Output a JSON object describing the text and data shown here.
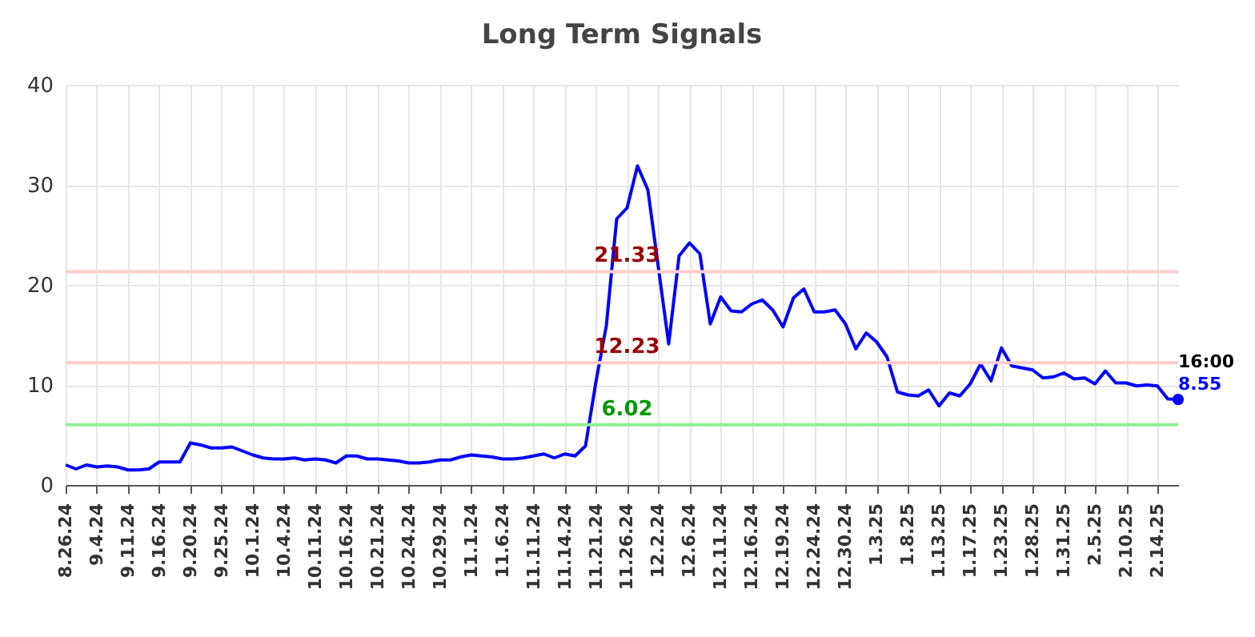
{
  "chart_data": {
    "type": "line",
    "title": "Long Term Signals",
    "categories": [
      "8.26.24",
      null,
      null,
      "9.4.24",
      null,
      null,
      "9.11.24",
      null,
      null,
      "9.16.24",
      null,
      null,
      "9.20.24",
      null,
      null,
      "9.25.24",
      null,
      null,
      "10.1.24",
      null,
      null,
      "10.4.24",
      null,
      null,
      "10.11.24",
      null,
      null,
      "10.16.24",
      null,
      null,
      "10.21.24",
      null,
      null,
      "10.24.24",
      null,
      null,
      "10.29.24",
      null,
      null,
      "11.1.24",
      null,
      null,
      "11.6.24",
      null,
      null,
      "11.11.24",
      null,
      null,
      "11.14.24",
      null,
      null,
      "11.21.24",
      null,
      null,
      "11.26.24",
      null,
      null,
      "12.2.24",
      null,
      null,
      "12.6.24",
      null,
      null,
      "12.11.24",
      null,
      null,
      "12.16.24",
      null,
      null,
      "12.19.24",
      null,
      null,
      "12.24.24",
      null,
      null,
      "12.30.24",
      null,
      null,
      "1.3.25",
      null,
      null,
      "1.8.25",
      null,
      null,
      "1.13.25",
      null,
      null,
      "1.17.25",
      null,
      null,
      "1.23.25",
      null,
      null,
      "1.28.25",
      null,
      null,
      "1.31.25",
      null,
      null,
      "2.5.25",
      null,
      null,
      "2.10.25",
      null,
      null,
      "2.14.25",
      null,
      null
    ],
    "series": [
      {
        "color": "#0000ff",
        "values": [
          2.0,
          1.6,
          2.0,
          1.8,
          1.9,
          1.8,
          1.5,
          1.5,
          1.6,
          2.3,
          2.3,
          2.3,
          4.2,
          4.0,
          3.7,
          3.7,
          3.8,
          3.4,
          3.0,
          2.7,
          2.6,
          2.6,
          2.7,
          2.5,
          2.6,
          2.5,
          2.2,
          2.9,
          2.9,
          2.6,
          2.6,
          2.5,
          2.4,
          2.2,
          2.2,
          2.3,
          2.5,
          2.5,
          2.8,
          3.0,
          2.9,
          2.8,
          2.6,
          2.6,
          2.7,
          2.9,
          3.1,
          2.7,
          3.1,
          2.9,
          3.9,
          10.3,
          15.9,
          26.6,
          27.7,
          31.9,
          29.5,
          21.8,
          14.1,
          22.9,
          24.2,
          23.1,
          16.1,
          18.8,
          17.4,
          17.3,
          18.1,
          18.5,
          17.5,
          15.8,
          18.7,
          19.6,
          17.3,
          17.3,
          17.5,
          16.1,
          13.6,
          15.2,
          14.3,
          12.8,
          9.3,
          9.0,
          8.9,
          9.5,
          7.9,
          9.2,
          8.9,
          10.1,
          12.1,
          10.4,
          13.7,
          11.9,
          11.7,
          11.5,
          10.7,
          10.8,
          11.2,
          10.6,
          10.7,
          10.1,
          11.4,
          10.2,
          10.2,
          9.9,
          10.0,
          9.9,
          8.6,
          8.55
        ]
      }
    ],
    "ylim": [
      0,
      40
    ],
    "yticks": [
      0,
      10,
      20,
      30,
      40
    ],
    "grid": true,
    "ref_lines": [
      {
        "axis": "y",
        "value": 21.33,
        "label": "21.33",
        "color": "#ffcccc"
      },
      {
        "axis": "y",
        "value": 12.23,
        "label": "12.23",
        "color": "#ffcccc"
      },
      {
        "axis": "y",
        "value": 6.02,
        "label": "6.02",
        "color": "#90ee90"
      }
    ],
    "annotations": [
      "16:00",
      "8.55"
    ]
  }
}
